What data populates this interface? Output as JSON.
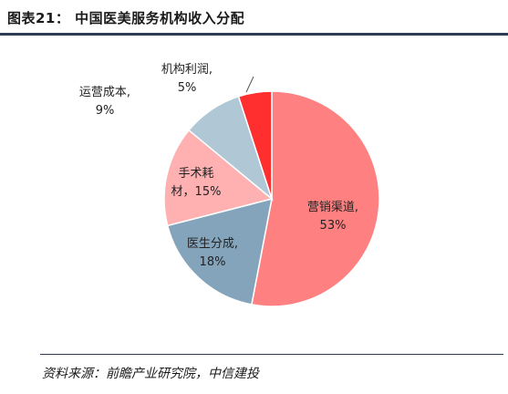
{
  "figure": {
    "title": "图表21：  中国医美服务机构收入分配",
    "source": "资料来源：前瞻产业研究院，中信建投"
  },
  "chart_data": {
    "type": "pie",
    "title": "中国医美服务机构收入分配",
    "unit": "%",
    "slices": [
      {
        "name": "营销渠道",
        "value": 53,
        "label_lines": [
          "营销渠道,",
          "53%"
        ],
        "color": "#ff8080"
      },
      {
        "name": "医生分成",
        "value": 18,
        "label_lines": [
          "医生分成,",
          "18%"
        ],
        "color": "#84a4bc"
      },
      {
        "name": "手术耗材",
        "value": 15,
        "label_lines": [
          "手术耗",
          "材，15%"
        ],
        "color": "#ffb1b1"
      },
      {
        "name": "运营成本",
        "value": 9,
        "label_lines": [
          "运营成本,",
          "9%"
        ],
        "color": "#b0c7d6"
      },
      {
        "name": "机构利润",
        "value": 5,
        "label_lines": [
          "机构利润,",
          "5%"
        ],
        "color": "#ff2f2f"
      }
    ]
  }
}
